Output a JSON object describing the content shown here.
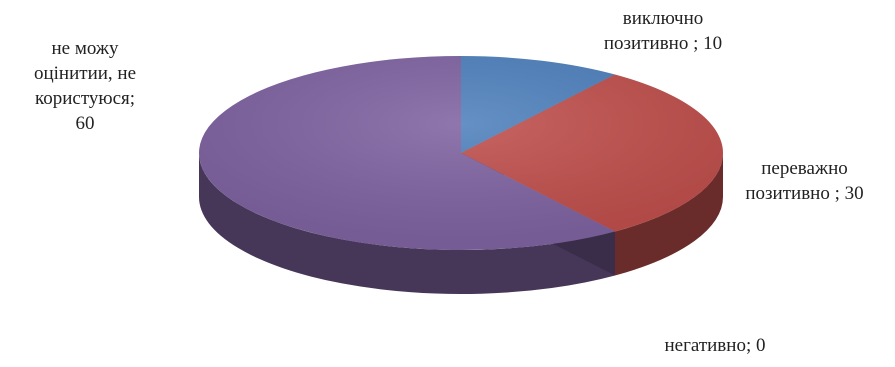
{
  "chart_data": {
    "type": "pie",
    "style": "3d",
    "title": "",
    "legend": "none",
    "slices": [
      {
        "label": "виключно\nпозитивно ; 10",
        "value": 10,
        "color": "#4f81bd"
      },
      {
        "label": "переважно\nпозитивно ; 30",
        "value": 30,
        "color": "#c0504d"
      },
      {
        "label": "негативно; 0",
        "value": 0,
        "color": "#9bbb59"
      },
      {
        "label": "не можу\nоцінитии, не\nкористуюся;\n60",
        "value": 60,
        "color": "#8064a2"
      }
    ]
  }
}
